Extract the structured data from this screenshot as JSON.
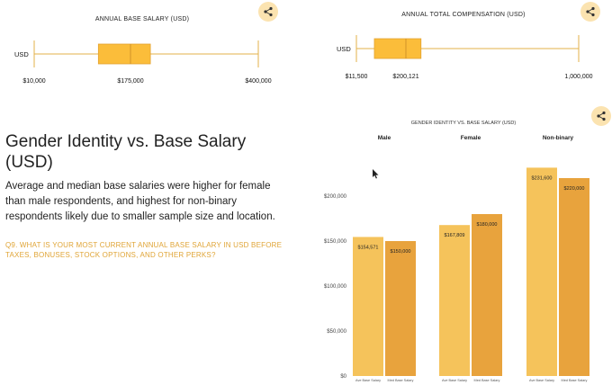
{
  "box1": {
    "title": "ANNUAL BASE SALARY (USD)",
    "axis_label": "USD",
    "ticks": [
      "$10,000",
      "$175,000",
      "$400,000"
    ]
  },
  "box2": {
    "title": "ANNUAL TOTAL COMPENSATION (USD)",
    "axis_label": "USD",
    "ticks": [
      "$11,500",
      "$200,121",
      "1,000,000"
    ]
  },
  "section": {
    "heading": "Gender Identity vs. Base Salary (USD)",
    "description": "Average and median base salaries were higher for female than male respondents, and highest for non-binary respondents likely due to smaller sample size and location.",
    "question": "Q9. WHAT IS YOUR MOST CURRENT ANNUAL BASE SALARY IN USD BEFORE TAXES, BONUSES, STOCK OPTIONS, AND OTHER PERKS?"
  },
  "icons": {
    "share": "share-icon"
  },
  "colors": {
    "avg": "#f5c35b",
    "median": "#e8a33d",
    "box": "#fbbd3a",
    "line": "#e3b24a",
    "share_bg": "#fbe3b0"
  },
  "chart_data": [
    {
      "type": "boxplot",
      "title": "ANNUAL BASE SALARY (USD)",
      "axis_label": "USD",
      "min": 10000,
      "q1": 120000,
      "median": 175000,
      "q3": 210000,
      "max": 400000
    },
    {
      "type": "boxplot",
      "title": "ANNUAL TOTAL COMPENSATION (USD)",
      "axis_label": "USD",
      "min": 11500,
      "q1": 80000,
      "median": 200121,
      "q3": 270000,
      "max": 1000000
    },
    {
      "type": "bar",
      "title": "GENDER IDENTITY VS. BASE SALARY (USD)",
      "groups": [
        "Male",
        "Female",
        "Non-binary"
      ],
      "series_labels": [
        "Ave Base Salary",
        "Med Base Salary"
      ],
      "values": [
        [
          154571,
          150000
        ],
        [
          167809,
          180000
        ],
        [
          231600,
          220000
        ]
      ],
      "value_labels": [
        [
          "$154,571",
          "$150,000"
        ],
        [
          "$167,809",
          "$180,000"
        ],
        [
          "$231,600",
          "$220,000"
        ]
      ],
      "y_ticks": [
        "$0",
        "$50,000",
        "$100,000",
        "$150,000",
        "$200,000"
      ],
      "ylim": [
        0,
        250000
      ],
      "grid": false
    }
  ]
}
